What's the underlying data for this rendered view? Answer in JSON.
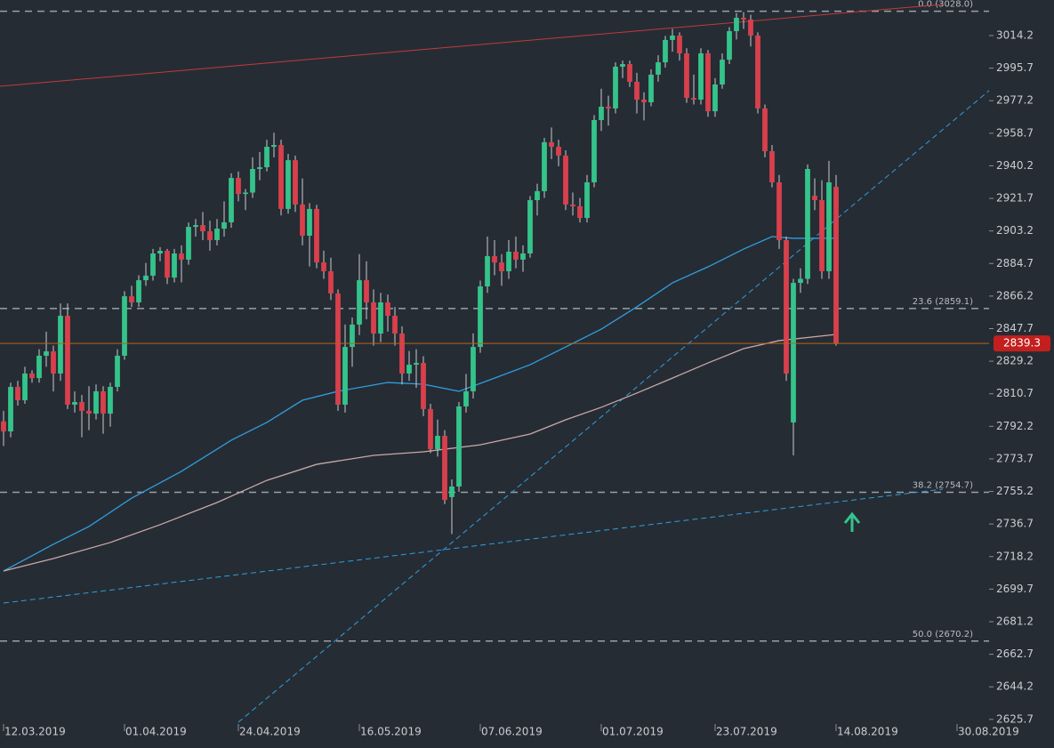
{
  "chart_data": {
    "type": "candlestick",
    "up_color": "#34c48b",
    "down_color": "#d8404c",
    "wick_color": "#c8cbd0",
    "xlim": [
      -0.5,
      138.5
    ],
    "ylim": [
      2624.1,
      3034.4
    ],
    "yticks": [
      3014.2,
      2995.7,
      2977.2,
      2958.7,
      2940.2,
      2921.7,
      2903.2,
      2884.7,
      2866.2,
      2847.7,
      2829.2,
      2810.7,
      2792.2,
      2773.7,
      2755.2,
      2736.7,
      2718.2,
      2699.7,
      2681.2,
      2662.7,
      2644.2,
      2625.7
    ],
    "xticks": [
      {
        "value": 0,
        "label": "12.03.2019"
      },
      {
        "value": 17,
        "label": "01.04.2019"
      },
      {
        "value": 33,
        "label": "24.04.2019"
      },
      {
        "value": 50,
        "label": "16.05.2019"
      },
      {
        "value": 67,
        "label": "07.06.2019"
      },
      {
        "value": 84,
        "label": "01.07.2019"
      },
      {
        "value": 100,
        "label": "23.07.2019"
      },
      {
        "value": 117,
        "label": "14.08.2019"
      },
      {
        "value": 134,
        "label": "30.08.2019"
      }
    ],
    "ohlc": [
      [
        2795.0,
        2801.0,
        2781.0,
        2789.3
      ],
      [
        2789.3,
        2817.0,
        2786.0,
        2814.6
      ],
      [
        2814.6,
        2818.0,
        2804.0,
        2807.0
      ],
      [
        2807.0,
        2826.0,
        2805.0,
        2822.2
      ],
      [
        2822.2,
        2824.0,
        2817.0,
        2819.6
      ],
      [
        2819.6,
        2836.0,
        2817.0,
        2832.3
      ],
      [
        2832.3,
        2846.0,
        2826.0,
        2834.8
      ],
      [
        2834.8,
        2838.0,
        2812.0,
        2822.2
      ],
      [
        2822.2,
        2862.0,
        2818.0,
        2855.0
      ],
      [
        2855.0,
        2862.0,
        2802.0,
        2804.5
      ],
      [
        2804.5,
        2812.0,
        2800.0,
        2806.0
      ],
      [
        2806.0,
        2810.0,
        2786.0,
        2801.0
      ],
      [
        2801.0,
        2815.0,
        2790.0,
        2799.4
      ],
      [
        2799.4,
        2816.0,
        2796.0,
        2812.1
      ],
      [
        2812.1,
        2815.0,
        2788.0,
        2799.4
      ],
      [
        2799.4,
        2817.0,
        2792.0,
        2814.6
      ],
      [
        2814.6,
        2836.0,
        2812.0,
        2832.3
      ],
      [
        2832.3,
        2869.0,
        2830.0,
        2866.1
      ],
      [
        2866.1,
        2872.0,
        2860.0,
        2862.6
      ],
      [
        2862.6,
        2878.0,
        2860.0,
        2875.2
      ],
      [
        2875.2,
        2885.0,
        2872.0,
        2877.8
      ],
      [
        2877.8,
        2893.0,
        2875.0,
        2890.4
      ],
      [
        2890.4,
        2894.0,
        2886.0,
        2891.9
      ],
      [
        2891.9,
        2893.0,
        2873.0,
        2876.7
      ],
      [
        2876.7,
        2893.0,
        2874.0,
        2890.4
      ],
      [
        2890.4,
        2895.0,
        2874.0,
        2886.9
      ],
      [
        2886.9,
        2908.0,
        2884.0,
        2905.5
      ],
      [
        2905.5,
        2910.0,
        2900.0,
        2906.5
      ],
      [
        2906.5,
        2914.0,
        2898.0,
        2903.0
      ],
      [
        2903.0,
        2909.0,
        2892.0,
        2898.0
      ],
      [
        2898.0,
        2910.0,
        2895.0,
        2904.5
      ],
      [
        2904.5,
        2920.0,
        2900.0,
        2908.1
      ],
      [
        2908.1,
        2936.0,
        2905.0,
        2933.3
      ],
      [
        2933.3,
        2937.0,
        2920.0,
        2924.2
      ],
      [
        2924.2,
        2927.0,
        2915.0,
        2925.0
      ],
      [
        2925.0,
        2945.0,
        2922.0,
        2938.4
      ],
      [
        2938.4,
        2948.0,
        2932.0,
        2939.4
      ],
      [
        2939.4,
        2955.0,
        2937.0,
        2951.0
      ],
      [
        2951.0,
        2959.0,
        2945.0,
        2952.0
      ],
      [
        2952.0,
        2955.0,
        2912.0,
        2915.7
      ],
      [
        2915.7,
        2947.0,
        2913.0,
        2943.4
      ],
      [
        2943.4,
        2946.0,
        2914.0,
        2918.2
      ],
      [
        2918.2,
        2933.0,
        2895.0,
        2900.5
      ],
      [
        2900.5,
        2919.0,
        2883.0,
        2915.7
      ],
      [
        2915.7,
        2918.0,
        2882.0,
        2885.3
      ],
      [
        2885.3,
        2892.0,
        2876.0,
        2880.3
      ],
      [
        2880.3,
        2888.0,
        2864.0,
        2867.7
      ],
      [
        2867.7,
        2870.0,
        2801.0,
        2804.5
      ],
      [
        2804.5,
        2850.0,
        2800.0,
        2837.3
      ],
      [
        2837.3,
        2854.0,
        2826.0,
        2850.0
      ],
      [
        2850.0,
        2890.0,
        2844.0,
        2875.2
      ],
      [
        2875.2,
        2886.0,
        2853.0,
        2862.6
      ],
      [
        2862.6,
        2870.0,
        2838.0,
        2844.9
      ],
      [
        2844.9,
        2868.0,
        2840.0,
        2862.6
      ],
      [
        2862.6,
        2867.0,
        2846.0,
        2855.0
      ],
      [
        2855.0,
        2860.0,
        2838.0,
        2844.9
      ],
      [
        2844.9,
        2849.0,
        2816.0,
        2822.2
      ],
      [
        2822.2,
        2835.0,
        2818.0,
        2827.2
      ],
      [
        2827.2,
        2836.0,
        2814.0,
        2828.2
      ],
      [
        2828.2,
        2832.0,
        2798.0,
        2802.0
      ],
      [
        2802.0,
        2805.0,
        2777.0,
        2779.2
      ],
      [
        2779.2,
        2796.0,
        2775.0,
        2786.8
      ],
      [
        2786.8,
        2790.0,
        2748.0,
        2750.4
      ],
      [
        2752.0,
        2762.0,
        2731.0,
        2758.0
      ],
      [
        2758.0,
        2806.0,
        2755.0,
        2803.5
      ],
      [
        2803.5,
        2822.0,
        2800.0,
        2812.1
      ],
      [
        2812.1,
        2845.0,
        2808.0,
        2837.3
      ],
      [
        2837.3,
        2875.0,
        2834.0,
        2871.7
      ],
      [
        2871.7,
        2900.0,
        2868.0,
        2888.9
      ],
      [
        2888.9,
        2898.0,
        2878.0,
        2885.3
      ],
      [
        2885.3,
        2890.0,
        2872.0,
        2880.3
      ],
      [
        2880.3,
        2898.0,
        2876.0,
        2891.4
      ],
      [
        2891.4,
        2900.0,
        2882.0,
        2886.9
      ],
      [
        2886.9,
        2895.0,
        2880.0,
        2890.4
      ],
      [
        2890.4,
        2923.0,
        2888.0,
        2920.7
      ],
      [
        2920.7,
        2930.0,
        2912.0,
        2925.8
      ],
      [
        2925.8,
        2956.0,
        2922.0,
        2953.6
      ],
      [
        2953.6,
        2962.0,
        2944.0,
        2951.0
      ],
      [
        2951.0,
        2955.0,
        2940.0,
        2946.0
      ],
      [
        2946.0,
        2949.0,
        2915.0,
        2918.2
      ],
      [
        2918.2,
        2925.0,
        2912.0,
        2917.2
      ],
      [
        2917.2,
        2922.0,
        2908.0,
        2910.6
      ],
      [
        2910.6,
        2935.0,
        2908.0,
        2930.8
      ],
      [
        2930.8,
        2969.0,
        2928.0,
        2966.2
      ],
      [
        2966.2,
        2984.0,
        2960.0,
        2973.8
      ],
      [
        2973.8,
        2980.0,
        2963.0,
        2972.8
      ],
      [
        2972.8,
        2999.0,
        2970.0,
        2996.5
      ],
      [
        2996.5,
        3000.0,
        2990.0,
        2998.0
      ],
      [
        2998.0,
        3000.0,
        2985.0,
        2987.9
      ],
      [
        2987.9,
        2993.0,
        2970.0,
        2977.8
      ],
      [
        2977.8,
        2982.0,
        2966.0,
        2976.3
      ],
      [
        2976.3,
        2995.0,
        2974.0,
        2992.0
      ],
      [
        2992.0,
        3003.0,
        2988.0,
        2999.0
      ],
      [
        2999.0,
        3014.0,
        2996.0,
        3011.7
      ],
      [
        3011.7,
        3018.0,
        3005.0,
        3014.2
      ],
      [
        3014.2,
        3016.0,
        3000.0,
        3004.1
      ],
      [
        3004.1,
        3007.0,
        2976.0,
        2978.8
      ],
      [
        2978.8,
        2992.0,
        2975.0,
        2977.8
      ],
      [
        2977.8,
        3007.0,
        2975.0,
        3004.1
      ],
      [
        3004.1,
        3006.0,
        2968.0,
        2971.2
      ],
      [
        2971.2,
        2990.0,
        2968.0,
        2986.4
      ],
      [
        2986.4,
        3004.0,
        2984.0,
        3000.5
      ],
      [
        3000.5,
        3019.0,
        2998.0,
        3016.7
      ],
      [
        3016.7,
        3027.0,
        3012.0,
        3024.3
      ],
      [
        3024.3,
        3027.5,
        3018.0,
        3023.3
      ],
      [
        3023.3,
        3026.0,
        3008.0,
        3014.2
      ],
      [
        3014.2,
        3016.0,
        2970.0,
        2972.8
      ],
      [
        2972.8,
        2975.0,
        2945.0,
        2948.5
      ],
      [
        2948.5,
        2952.0,
        2928.0,
        2930.8
      ],
      [
        2930.8,
        2935.0,
        2893.0,
        2898.0
      ],
      [
        2898.0,
        2900.0,
        2818.0,
        2822.2
      ],
      [
        2794.4,
        2876.0,
        2775.7,
        2873.7
      ],
      [
        2873.7,
        2882.0,
        2868.0,
        2876.0
      ],
      [
        2876.0,
        2941.0,
        2873.0,
        2938.4
      ],
      [
        2923.2,
        2933.0,
        2915.0,
        2920.7
      ],
      [
        2920.7,
        2932.0,
        2876.0,
        2880.3
      ],
      [
        2880.3,
        2943.0,
        2876.0,
        2930.8
      ],
      [
        2928.3,
        2935.0,
        2838.0,
        2839.3
      ]
    ],
    "moving_averages": [
      {
        "color": "#2e9fe0",
        "x": [
          0,
          7,
          12,
          18,
          25,
          32,
          37,
          42,
          47,
          54,
          59,
          64,
          69,
          74,
          79,
          84,
          89,
          94,
          99,
          104,
          108,
          111,
          117
        ],
        "values": [
          2710.0,
          2725.2,
          2735.3,
          2751.4,
          2766.6,
          2784.3,
          2794.4,
          2807.0,
          2812.1,
          2817.1,
          2816.1,
          2812.1,
          2819.6,
          2827.2,
          2837.3,
          2847.4,
          2860.1,
          2873.7,
          2882.8,
          2892.9,
          2900.0,
          2899.0,
          2899.0
        ]
      },
      {
        "color": "#c9a8a8",
        "x": [
          0,
          7,
          15,
          22,
          30,
          37,
          44,
          52,
          59,
          67,
          74,
          79,
          84,
          89,
          94,
          99,
          104,
          109,
          117
        ],
        "values": [
          2710.0,
          2717.1,
          2726.2,
          2736.3,
          2748.9,
          2761.5,
          2770.6,
          2775.7,
          2777.7,
          2781.7,
          2787.8,
          2795.9,
          2803.0,
          2811.1,
          2819.6,
          2828.2,
          2836.3,
          2840.9,
          2844.4
        ]
      }
    ],
    "trend_lines": [
      {
        "color": "#c23a3a",
        "dashed": false,
        "x": [
          -0.5,
          132
        ],
        "values": [
          2985.4,
          3031.9
        ]
      },
      {
        "color": "#2e9fe0",
        "dashed": true,
        "x": [
          33,
          138.5
        ],
        "values": [
          2624.1,
          2982.9
        ]
      },
      {
        "color": "#2e9fe0",
        "dashed": true,
        "x": [
          0,
          132
        ],
        "values": [
          2691.8,
          2756.5
        ]
      }
    ],
    "fib_levels": [
      {
        "label": "0.0 (3028.0)",
        "value": 3028.0
      },
      {
        "label": "23.6 (2859.1)",
        "value": 2859.1
      },
      {
        "label": "38.2 (2754.7)",
        "value": 2754.7
      },
      {
        "label": "50.0 (2670.2)",
        "value": 2670.2
      }
    ],
    "price_line_color": "#b5651d",
    "price_label_color": "#c41f1f"
  }
}
